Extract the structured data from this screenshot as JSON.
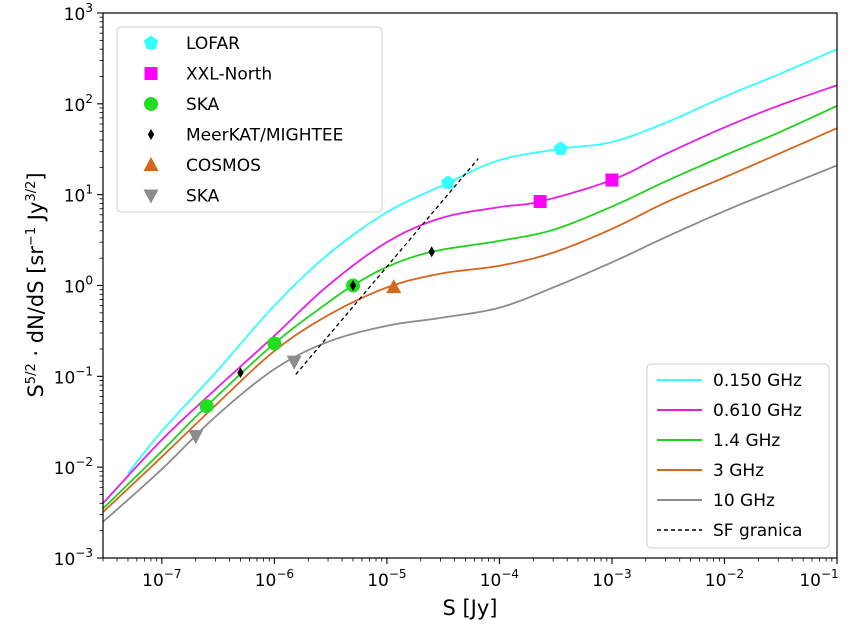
{
  "chart_data": {
    "type": "line",
    "xscale": "log",
    "yscale": "log",
    "xlim": [
      3e-08,
      0.1
    ],
    "ylim": [
      0.001,
      1000
    ],
    "xlabel": {
      "base": "S [Jy]"
    },
    "ylabel": {
      "base": "S",
      "sup1": "5/2",
      "mid": " · dN/dS [sr",
      "sup2": "−1",
      "mid2": " Jy",
      "sup3": "3/2",
      "end": "]"
    },
    "x_ticks": [
      {
        "base": "10",
        "exp": "−7",
        "value": 1e-07
      },
      {
        "base": "10",
        "exp": "−6",
        "value": 1e-06
      },
      {
        "base": "10",
        "exp": "−5",
        "value": 1e-05
      },
      {
        "base": "10",
        "exp": "−4",
        "value": 0.0001
      },
      {
        "base": "10",
        "exp": "−3",
        "value": 0.001
      },
      {
        "base": "10",
        "exp": "−2",
        "value": 0.01
      },
      {
        "base": "10",
        "exp": "−1",
        "value": 0.1
      }
    ],
    "y_ticks": [
      {
        "base": "10",
        "exp": "−3",
        "value": 0.001
      },
      {
        "base": "10",
        "exp": "−2",
        "value": 0.01
      },
      {
        "base": "10",
        "exp": "−1",
        "value": 0.1
      },
      {
        "base": "10",
        "exp": "0",
        "value": 1
      },
      {
        "base": "10",
        "exp": "1",
        "value": 10
      },
      {
        "base": "10",
        "exp": "2",
        "value": 100
      },
      {
        "base": "10",
        "exp": "3",
        "value": 1000
      }
    ],
    "curves": [
      {
        "name": "0.150 GHz",
        "color": "#33ffff",
        "x": [
          5e-08,
          1e-07,
          3e-07,
          1e-06,
          3e-06,
          1e-05,
          3.5e-05,
          0.0001,
          0.00035,
          0.001,
          0.003,
          0.01,
          0.03,
          0.1
        ],
        "y": [
          0.0085,
          0.025,
          0.11,
          0.6,
          2.2,
          6.4,
          13.5,
          24,
          32,
          38,
          62,
          120,
          210,
          400
        ]
      },
      {
        "name": "0.610 GHz",
        "color": "#e61ee6",
        "x": [
          3e-08,
          1e-07,
          3e-07,
          1e-06,
          3e-06,
          1e-05,
          3e-05,
          0.0001,
          0.00023,
          0.001,
          0.003,
          0.01,
          0.03,
          0.1
        ],
        "y": [
          0.004,
          0.02,
          0.072,
          0.28,
          1.0,
          3.0,
          5.5,
          7.3,
          8.4,
          14.5,
          28,
          55,
          95,
          160
        ]
      },
      {
        "name": "1.4 GHz",
        "color": "#1ed21e",
        "x": [
          3e-08,
          1e-07,
          2.5e-07,
          1e-06,
          3e-06,
          5e-06,
          1e-05,
          2.5e-05,
          0.0001,
          0.0003,
          0.001,
          0.003,
          0.01,
          0.03,
          0.1
        ],
        "y": [
          0.0035,
          0.015,
          0.047,
          0.23,
          0.65,
          1.0,
          1.6,
          2.35,
          3.1,
          4.1,
          7.4,
          14,
          27,
          48,
          95
        ]
      },
      {
        "name": "3 GHz",
        "color": "#d4661e",
        "x": [
          3e-08,
          1e-07,
          3e-07,
          1e-06,
          3e-06,
          1e-05,
          3e-05,
          0.0001,
          0.0003,
          0.001,
          0.003,
          0.01,
          0.03,
          0.1
        ],
        "y": [
          0.0032,
          0.013,
          0.048,
          0.19,
          0.47,
          0.95,
          1.35,
          1.65,
          2.3,
          4.2,
          8.2,
          15.5,
          28,
          54
        ]
      },
      {
        "name": "10 GHz",
        "color": "#8c8c8c",
        "x": [
          3e-08,
          1e-07,
          3e-07,
          1e-06,
          3e-06,
          1e-05,
          3e-05,
          0.0001,
          0.0003,
          0.001,
          0.003,
          0.01,
          0.03,
          0.1
        ],
        "y": [
          0.0025,
          0.0095,
          0.036,
          0.12,
          0.24,
          0.36,
          0.44,
          0.57,
          0.95,
          1.8,
          3.4,
          6.6,
          11.5,
          21
        ]
      }
    ],
    "boundary": {
      "name": "SF granica",
      "color": "#000000",
      "x": [
        1.55e-06,
        6.5e-05
      ],
      "y": [
        0.105,
        25
      ]
    },
    "markers": [
      {
        "name": "LOFAR",
        "shape": "pentagon",
        "color": "#33ffff",
        "points": [
          [
            3.5e-05,
            13.5
          ],
          [
            0.00035,
            32
          ]
        ]
      },
      {
        "name": "XXL-North",
        "shape": "square",
        "color": "#ff00ff",
        "points": [
          [
            0.00023,
            8.4
          ],
          [
            0.001,
            14.5
          ]
        ]
      },
      {
        "name": "SKA",
        "shape": "circle",
        "color": "#22dd22",
        "points": [
          [
            2.5e-07,
            0.047
          ],
          [
            1e-06,
            0.23
          ],
          [
            5e-06,
            1.0
          ]
        ]
      },
      {
        "name": "MeerKAT/MIGHTEE",
        "shape": "thin_diamond",
        "color": "#000000",
        "points": [
          [
            5e-07,
            0.11
          ],
          [
            5e-06,
            1.0
          ],
          [
            2.5e-05,
            2.35
          ]
        ]
      },
      {
        "name": "COSMOS",
        "shape": "triangle_up",
        "color": "#d4661e",
        "points": [
          [
            1.15e-05,
            0.96
          ]
        ]
      },
      {
        "name": "SKA",
        "shape": "triangle_down",
        "color": "#8c8c8c",
        "points": [
          [
            2e-07,
            0.022
          ],
          [
            1.5e-06,
            0.145
          ]
        ]
      }
    ],
    "legend_markers": {
      "position": "upper-left",
      "entries": [
        "LOFAR",
        "XXL-North",
        "SKA",
        "MeerKAT/MIGHTEE",
        "COSMOS",
        "SKA"
      ]
    },
    "legend_lines": {
      "position": "lower-right",
      "entries": [
        "0.150 GHz",
        "0.610 GHz",
        "1.4 GHz",
        "3 GHz",
        "10 GHz",
        "SF granica"
      ]
    }
  }
}
